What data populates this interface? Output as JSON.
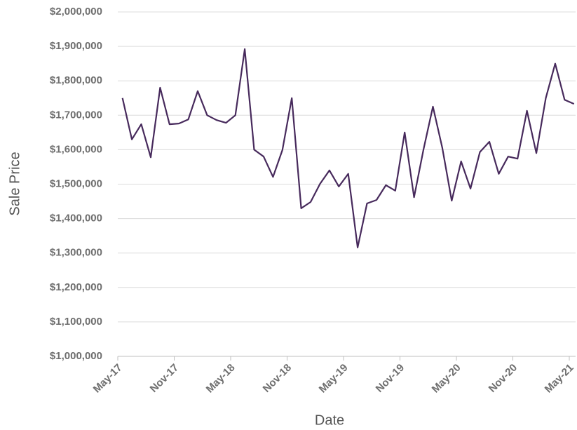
{
  "chart_data": {
    "type": "line",
    "x_label": "Date",
    "y_label": "Sale Price",
    "color": "#472a5c",
    "grid": true,
    "categories": [
      "May-17",
      null,
      null,
      null,
      null,
      null,
      "Nov-17",
      null,
      null,
      null,
      null,
      null,
      "May-18",
      null,
      null,
      null,
      null,
      null,
      "Nov-18",
      null,
      null,
      null,
      null,
      null,
      "May-19",
      null,
      null,
      null,
      null,
      null,
      "Nov-19",
      null,
      null,
      null,
      null,
      null,
      "May-20",
      null,
      null,
      null,
      null,
      null,
      "Nov-20",
      null,
      null,
      null,
      null,
      null,
      "May-21"
    ],
    "values": [
      1750000,
      1630000,
      1674000,
      1578000,
      1780000,
      1674000,
      1676000,
      1688000,
      1770000,
      1700000,
      1686000,
      1678000,
      1700000,
      1892000,
      1600000,
      1580000,
      1521000,
      1599000,
      1750000,
      1430000,
      1448000,
      1501000,
      1540000,
      1493000,
      1530000,
      1316000,
      1444000,
      1454000,
      1497000,
      1481000,
      1650000,
      1462000,
      1600000,
      1725000,
      1605000,
      1452000,
      1566000,
      1487000,
      1593000,
      1623000,
      1530000,
      1580000,
      1574000,
      1713000,
      1590000,
      1750000,
      1850000,
      1745000,
      1733000
    ],
    "ylim": [
      1000000,
      2000000
    ],
    "yticks": [
      {
        "value": 1000000,
        "label": "$1,000,000"
      },
      {
        "value": 1100000,
        "label": "$1,100,000"
      },
      {
        "value": 1200000,
        "label": "$1,200,000"
      },
      {
        "value": 1300000,
        "label": "$1,300,000"
      },
      {
        "value": 1400000,
        "label": "$1,400,000"
      },
      {
        "value": 1500000,
        "label": "$1,500,000"
      },
      {
        "value": 1600000,
        "label": "$1,600,000"
      },
      {
        "value": 1700000,
        "label": "$1,700,000"
      },
      {
        "value": 1800000,
        "label": "$1,800,000"
      },
      {
        "value": 1900000,
        "label": "$1,900,000"
      },
      {
        "value": 2000000,
        "label": "$2,000,000"
      }
    ]
  }
}
